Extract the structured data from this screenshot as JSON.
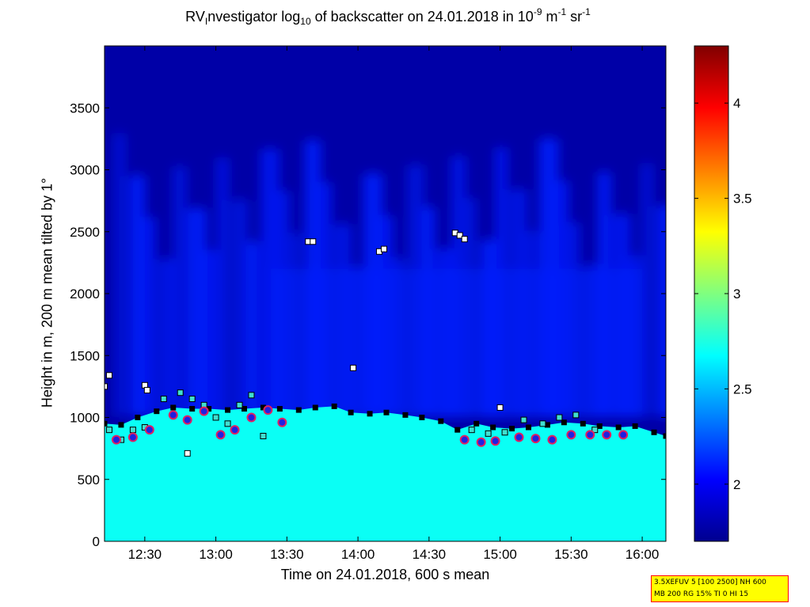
{
  "title": {
    "prefix": "RV",
    "sub1": "I",
    "part2": "nvestigator log",
    "sub2": "10",
    "part3": " of backscatter on 24.01.2018 in 10",
    "sup1": "-9",
    "part4": " m",
    "sup2": "-1",
    "part5": " sr",
    "sup3": "-1"
  },
  "infobox": {
    "line1": "3.5XEFUV 5 [100 2500] NH 600",
    "line2": "MB 200 RG 15% TI 0 HI 15"
  },
  "chart_data": {
    "type": "heatmap",
    "xlabel": "Time on 24.01.2018, 600 s mean",
    "ylabel": "Height in m, 200 m mean tilted by 1°",
    "xlim": [
      "12:13",
      "16:10"
    ],
    "ylim": [
      0,
      4000
    ],
    "xticks": [
      "12:30",
      "13:00",
      "13:30",
      "14:00",
      "14:30",
      "15:00",
      "15:30",
      "16:00"
    ],
    "yticks": [
      0,
      500,
      1000,
      1500,
      2000,
      2500,
      3000,
      3500
    ],
    "colorbar": {
      "colormap": "jet",
      "range": [
        1.7,
        4.3
      ],
      "ticks": [
        2,
        2.5,
        3,
        3.5,
        4
      ]
    },
    "layers": {
      "near_surface_layer_top_m": 1000,
      "near_surface_value": 2.7,
      "background_value": 1.8,
      "aerosol_plume_value": 2.1,
      "plume_top_m": 3300
    },
    "boundary_layer_height_series": {
      "name": "",
      "color": "#000000",
      "time": [
        "12:13",
        "12:20",
        "12:27",
        "12:35",
        "12:42",
        "12:50",
        "12:57",
        "13:05",
        "13:12",
        "13:20",
        "13:27",
        "13:35",
        "13:42",
        "13:50",
        "13:57",
        "14:05",
        "14:12",
        "14:20",
        "14:27",
        "14:35",
        "14:42",
        "14:50",
        "14:57",
        "15:05",
        "15:12",
        "15:20",
        "15:27",
        "15:35",
        "15:42",
        "15:50",
        "15:57",
        "16:05",
        "16:10"
      ],
      "height_m": [
        950,
        940,
        1000,
        1050,
        1080,
        1070,
        1070,
        1060,
        1070,
        1080,
        1070,
        1060,
        1080,
        1090,
        1040,
        1030,
        1040,
        1020,
        1000,
        970,
        900,
        950,
        920,
        910,
        920,
        940,
        960,
        950,
        930,
        920,
        930,
        880,
        850
      ]
    },
    "cloud_base_markers": {
      "color": "#40e0d0",
      "time": [
        "12:15",
        "12:20",
        "12:25",
        "12:30",
        "12:38",
        "12:45",
        "12:50",
        "12:55",
        "13:00",
        "13:05",
        "13:10",
        "13:15",
        "13:20",
        "14:48",
        "14:55",
        "15:02",
        "15:10",
        "15:18",
        "15:25",
        "15:32",
        "15:40"
      ],
      "height_m": [
        900,
        820,
        900,
        920,
        1150,
        1200,
        1150,
        1100,
        1000,
        950,
        1100,
        1180,
        850,
        900,
        870,
        880,
        980,
        950,
        1000,
        1020,
        900
      ]
    },
    "upper_markers": {
      "color": "#ffffff",
      "time": [
        "12:13",
        "12:15",
        "12:30",
        "12:31",
        "13:39",
        "13:41",
        "13:58",
        "14:09",
        "14:11",
        "14:41",
        "14:43",
        "14:45",
        "15:00",
        "12:48"
      ],
      "height_m": [
        1250,
        1340,
        1260,
        1220,
        2420,
        2420,
        1400,
        2340,
        2360,
        2490,
        2470,
        2440,
        1080,
        710
      ]
    },
    "lower_layer_markers": {
      "color": "#2020e0",
      "time": [
        "12:18",
        "12:25",
        "12:32",
        "12:42",
        "12:48",
        "12:55",
        "13:02",
        "13:08",
        "13:15",
        "13:22",
        "13:28",
        "14:45",
        "14:52",
        "14:58",
        "15:08",
        "15:15",
        "15:22",
        "15:30",
        "15:38",
        "15:45",
        "15:52"
      ],
      "height_m": [
        820,
        840,
        900,
        1020,
        980,
        1050,
        860,
        900,
        1000,
        1060,
        960,
        820,
        800,
        810,
        840,
        830,
        820,
        860,
        860,
        860,
        860
      ]
    }
  }
}
